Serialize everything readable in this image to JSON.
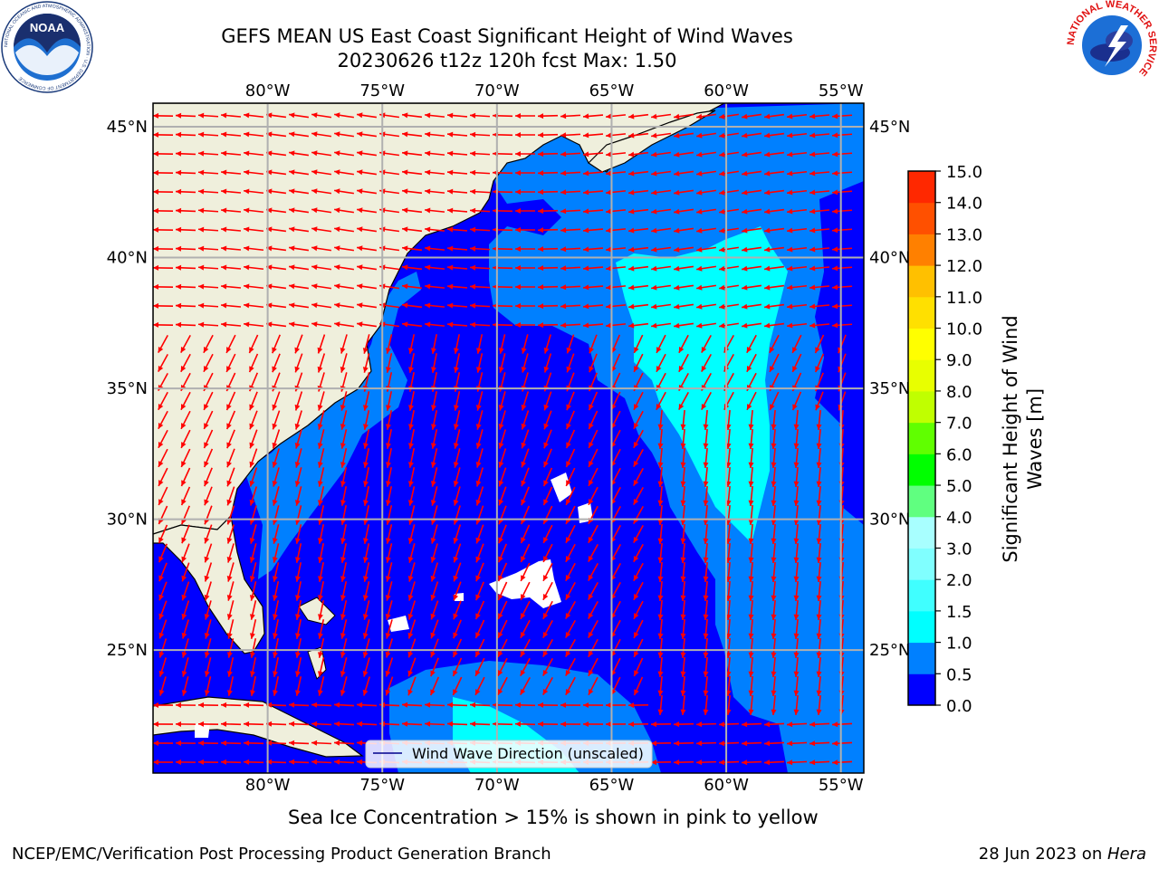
{
  "title_line1": "GEFS MEAN US East Coast Significant Height of Wind Waves",
  "title_line2": "20230626 t12z 120h fcst   Max: 1.50",
  "map": {
    "lon_range": [
      -85,
      -54
    ],
    "lat_range": [
      20.3,
      45.9
    ],
    "lon_ticks": [
      -80,
      -75,
      -70,
      -65,
      -60,
      -55
    ],
    "lat_ticks": [
      25,
      30,
      35,
      40,
      45
    ],
    "lon_labels": [
      "80°W",
      "75°W",
      "70°W",
      "65°W",
      "60°W",
      "55°W"
    ],
    "lat_labels": [
      "25°N",
      "30°N",
      "35°N",
      "40°N",
      "45°N"
    ],
    "grid": true,
    "legend_label": "Wind Wave Direction (unscaled)",
    "legend_placement": "bottom-center",
    "colors": {
      "land": "#efefdc",
      "wave_0_05": "#0000ff",
      "wave_05_10": "#0080ff",
      "wave_10_15": "#00ffff",
      "arrow": "#ff0000",
      "grid": "#b0b0b0"
    }
  },
  "colorbar": {
    "label": "Significant Height of Wind Waves [m]",
    "label_line1": "Significant Height of Wind",
    "label_line2": "Waves [m]",
    "ticks": [
      "0.0",
      "0.5",
      "1.0",
      "1.5",
      "2.0",
      "3.0",
      "4.0",
      "5.0",
      "6.0",
      "7.0",
      "8.0",
      "9.0",
      "10.0",
      "11.0",
      "12.0",
      "13.0",
      "14.0",
      "15.0"
    ],
    "colors": [
      "#0000ff",
      "#0080ff",
      "#00ffff",
      "#40ffff",
      "#80ffff",
      "#a8ffff",
      "#60ff80",
      "#00ff00",
      "#60ff00",
      "#c0ff00",
      "#e8ff00",
      "#ffff00",
      "#ffe000",
      "#ffc000",
      "#ff8000",
      "#ff5000",
      "#ff2800",
      "#ff0000"
    ]
  },
  "footer": {
    "ice_note": "Sea Ice Concentration > 15% is shown in pink to yellow",
    "credit": "NCEP/EMC/Verification Post Processing Product Generation Branch",
    "date": "28 Jun 2023 on ",
    "machine": "Hera"
  },
  "logos": {
    "noaa_text": "NOAA",
    "noaa_ring_text": "NATIONAL OCEANIC AND ATMOSPHERIC ADMINISTRATION · U.S. DEPARTMENT OF COMMERCE",
    "nws_ring_text": "NATIONAL WEATHER SERVICE"
  }
}
